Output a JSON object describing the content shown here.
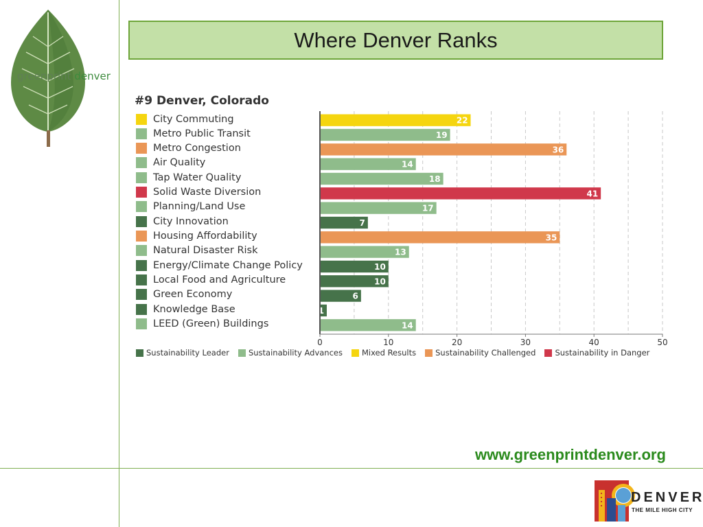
{
  "branding": {
    "logo_word1": "greenprint",
    "logo_word2": "denver",
    "url": "www.greenprintdenver.org",
    "city_word": "DENVER",
    "city_tagline": "THE MILE HIGH CITY"
  },
  "slide": {
    "title": "Where Denver Ranks"
  },
  "colors": {
    "Sustainability Leader": "#46734a",
    "Sustainability Advances": "#8fbc8b",
    "Mixed Results": "#f5d50f",
    "Sustainability Challenged": "#ea9656",
    "Sustainability in Danger": "#d0384b",
    "accent_green": "#6ea53a"
  },
  "chart_data": {
    "type": "bar",
    "orientation": "horizontal",
    "title": "#9 Denver, Colorado",
    "xlim": [
      0,
      50
    ],
    "xticks": [
      0,
      10,
      20,
      30,
      40,
      50
    ],
    "grid": "vertical dashed",
    "legend_position": "bottom",
    "legend": [
      "Sustainability Leader",
      "Sustainability Advances",
      "Mixed Results",
      "Sustainability Challenged",
      "Sustainability in Danger"
    ],
    "categories": [
      "City Commuting",
      "Metro Public Transit",
      "Metro Congestion",
      "Air Quality",
      "Tap Water Quality",
      "Solid Waste Diversion",
      "Planning/Land Use",
      "City Innovation",
      "Housing Affordability",
      "Natural Disaster Risk",
      "Energy/Climate Change Policy",
      "Local Food and Agriculture",
      "Green Economy",
      "Knowledge Base",
      "LEED (Green) Buildings"
    ],
    "values": [
      22,
      19,
      36,
      14,
      18,
      41,
      17,
      7,
      35,
      13,
      10,
      10,
      6,
      1,
      14
    ],
    "groups": [
      "Mixed Results",
      "Sustainability Advances",
      "Sustainability Challenged",
      "Sustainability Advances",
      "Sustainability Advances",
      "Sustainability in Danger",
      "Sustainability Advances",
      "Sustainability Leader",
      "Sustainability Challenged",
      "Sustainability Advances",
      "Sustainability Leader",
      "Sustainability Leader",
      "Sustainability Leader",
      "Sustainability Leader",
      "Sustainability Advances"
    ]
  }
}
